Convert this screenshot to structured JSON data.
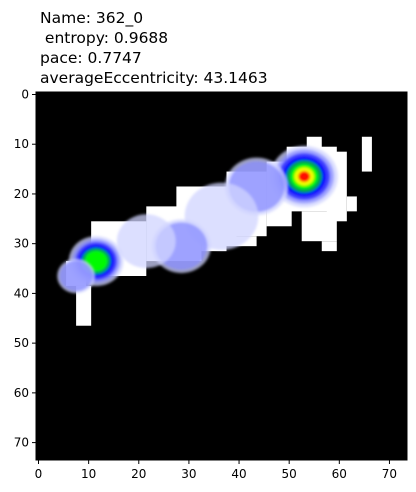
{
  "chart_data": {
    "type": "heatmap",
    "title_lines": [
      "Name: 362_0",
      " entropy: 0.9688",
      "pace: 0.7747",
      "averageEccentricity: 43.1463"
    ],
    "xlabel": "",
    "ylabel": "",
    "xlim": [
      0,
      74
    ],
    "ylim": [
      74,
      0
    ],
    "y_axis_inverted": true,
    "x_ticks": [
      0,
      10,
      20,
      30,
      40,
      50,
      60,
      70
    ],
    "y_ticks": [
      0,
      10,
      20,
      30,
      40,
      50,
      60,
      70
    ],
    "grid": false,
    "background_color": "#000000",
    "visited_color": "#ffffff",
    "colormap": [
      "#ffffff",
      "#d0d4ff",
      "#8a8eff",
      "#3c3cff",
      "#0000ff",
      "#00aa44",
      "#00ff00",
      "#ffff00",
      "#ff0000"
    ],
    "visited_region": [
      {
        "x": [
          6,
          10
        ],
        "y": [
          34,
          39
        ]
      },
      {
        "x": [
          8,
          11
        ],
        "y": [
          39,
          47
        ]
      },
      {
        "x": [
          11,
          22
        ],
        "y": [
          26,
          37
        ]
      },
      {
        "x": [
          22,
          33
        ],
        "y": [
          23,
          34
        ]
      },
      {
        "x": [
          33,
          38
        ],
        "y": [
          20,
          32
        ]
      },
      {
        "x": [
          28,
          40
        ],
        "y": [
          19,
          30
        ]
      },
      {
        "x": [
          38,
          46
        ],
        "y": [
          16,
          29
        ]
      },
      {
        "x": [
          46,
          51
        ],
        "y": [
          14,
          27
        ]
      },
      {
        "x": [
          50,
          60
        ],
        "y": [
          11,
          24
        ]
      },
      {
        "x": [
          54,
          57
        ],
        "y": [
          9,
          13
        ]
      },
      {
        "x": [
          58,
          62
        ],
        "y": [
          12,
          26
        ]
      },
      {
        "x": [
          62,
          64
        ],
        "y": [
          21,
          24
        ]
      },
      {
        "x": [
          65,
          67
        ],
        "y": [
          9,
          16
        ]
      },
      {
        "x": [
          53,
          60
        ],
        "y": [
          24,
          30
        ]
      },
      {
        "x": [
          57,
          60
        ],
        "y": [
          30,
          32
        ]
      },
      {
        "x": [
          36,
          44
        ],
        "y": [
          29,
          31
        ]
      }
    ],
    "density_peaks": [
      {
        "x": 53.5,
        "y": 17,
        "weight": 1.0,
        "spread": 3.2
      },
      {
        "x": 12,
        "y": 34,
        "weight": 0.72,
        "spread": 2.6
      },
      {
        "x": 44,
        "y": 19,
        "weight": 0.22,
        "spread": 3.0
      },
      {
        "x": 37,
        "y": 25,
        "weight": 0.18,
        "spread": 3.5
      },
      {
        "x": 29,
        "y": 31,
        "weight": 0.2,
        "spread": 2.8
      },
      {
        "x": 22,
        "y": 30,
        "weight": 0.18,
        "spread": 2.8
      },
      {
        "x": 8,
        "y": 37,
        "weight": 0.3,
        "spread": 1.8
      }
    ]
  }
}
